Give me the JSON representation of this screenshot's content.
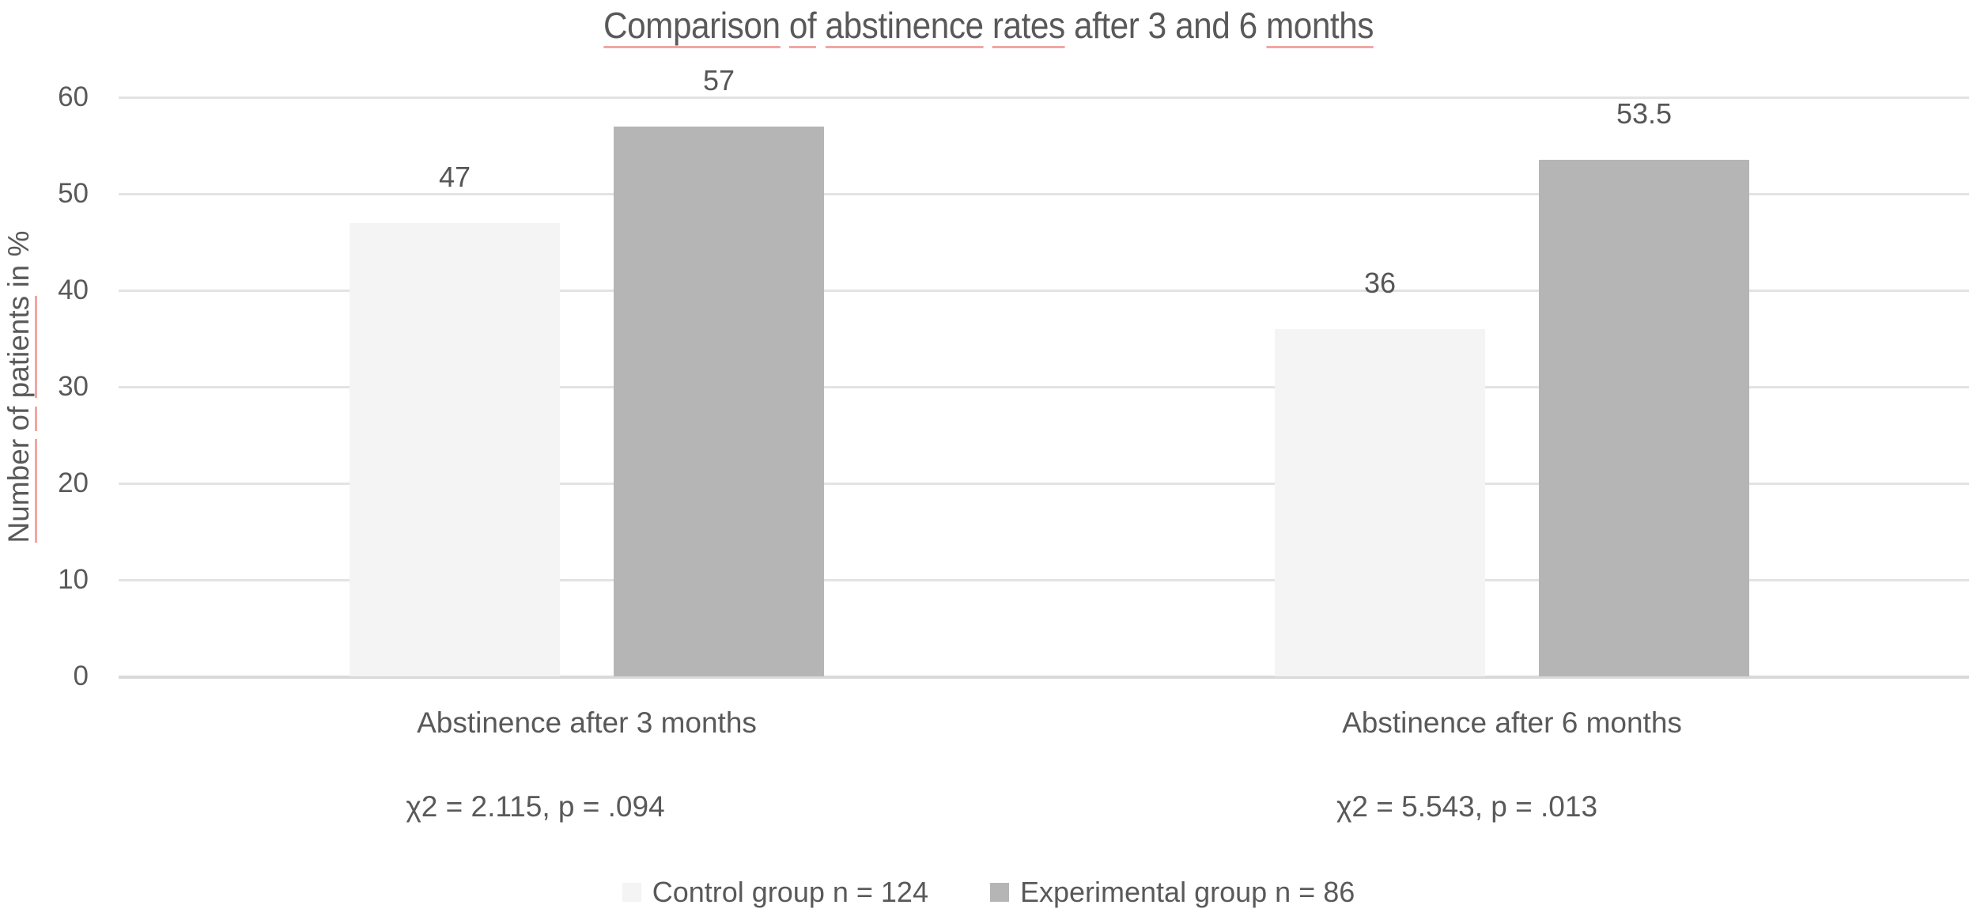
{
  "chart_data": {
    "type": "bar",
    "title": {
      "text": "Comparison of abstinence rates after 3 and 6 months",
      "words": [
        {
          "w": "Comparison",
          "u": true
        },
        {
          "w": "of",
          "u": true
        },
        {
          "w": "abstinence",
          "u": true
        },
        {
          "w": "rates",
          "u": true
        },
        {
          "w": "after",
          "u": false
        },
        {
          "w": "3",
          "u": false
        },
        {
          "w": "and",
          "u": false
        },
        {
          "w": "6",
          "u": false
        },
        {
          "w": "months",
          "u": true
        }
      ]
    },
    "ylabel": {
      "text": "Number of patients in %",
      "words": [
        {
          "w": "Number",
          "u": true
        },
        {
          "w": "of",
          "u": true
        },
        {
          "w": "patients",
          "u": true
        },
        {
          "w": "in",
          "u": false
        },
        {
          "w": "%",
          "u": false
        }
      ]
    },
    "xlabel": "",
    "ylim": [
      0,
      60
    ],
    "yticks": [
      "0",
      "10",
      "20",
      "30",
      "40",
      "50",
      "60"
    ],
    "grid": true,
    "legend_position": "bottom",
    "categories": [
      "Abstinence after 3 months",
      "Abstinence after 6 months"
    ],
    "annotations": [
      "χ2 = 2.115, p = .094",
      "χ2 = 5.543, p = .013"
    ],
    "series": [
      {
        "name": "Control group n = 124",
        "color": "#f4f4f4",
        "values": [
          47,
          36
        ],
        "labels": [
          "47",
          "36"
        ]
      },
      {
        "name": "Experimental group n = 86",
        "color": "#b5b5b5",
        "values": [
          57,
          53.5
        ],
        "labels": [
          "57",
          "53.5"
        ]
      }
    ],
    "colors": {
      "text": "#595959",
      "gridline": "#e3e3e3",
      "axis_line": "#d9d9d9",
      "spellcheck_underline": "#f2a6a1"
    }
  }
}
